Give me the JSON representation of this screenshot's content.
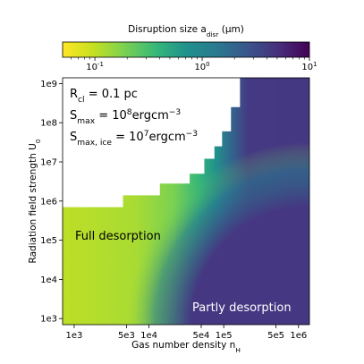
{
  "chart_data": {
    "type": "heatmap",
    "title": "",
    "xlabel": "Gas number density n_H",
    "ylabel": "Radiation field strength U_0",
    "x_scale": "log",
    "y_scale": "log",
    "xlim": [
      700,
      1400000
    ],
    "ylim": [
      700,
      1400000000
    ],
    "x_ticks": [
      {
        "value": 1000,
        "label": "1e3"
      },
      {
        "value": 5000,
        "label": "5e3"
      },
      {
        "value": 10000,
        "label": "1e4"
      },
      {
        "value": 50000,
        "label": "5e4"
      },
      {
        "value": 100000,
        "label": "1e5"
      },
      {
        "value": 500000,
        "label": "5e5"
      },
      {
        "value": 1000000,
        "label": "1e6"
      }
    ],
    "y_ticks": [
      {
        "value": 1000,
        "label": "1e3"
      },
      {
        "value": 10000,
        "label": "1e4"
      },
      {
        "value": 100000,
        "label": "1e5"
      },
      {
        "value": 1000000,
        "label": "1e6"
      },
      {
        "value": 10000000,
        "label": "1e7"
      },
      {
        "value": 100000000,
        "label": "1e8"
      },
      {
        "value": 1000000000,
        "label": "1e9"
      }
    ],
    "colorbar": {
      "label": "Disruption size a_disr (μm)",
      "scale": "log",
      "range": [
        0.05,
        10
      ],
      "colormap": "viridis_r",
      "ticks": [
        {
          "value": 0.1,
          "label": "10^-1"
        },
        {
          "value": 1,
          "label": "10^0"
        },
        {
          "value": 10,
          "label": "10^1"
        }
      ],
      "location": "top"
    },
    "full_desorption_boundary": [
      {
        "n_H": 700,
        "U0_min": 700000
      },
      {
        "n_H": 4500,
        "U0_min": 700000
      },
      {
        "n_H": 4500,
        "U0_min": 1400000
      },
      {
        "n_H": 14000,
        "U0_min": 1400000
      },
      {
        "n_H": 14000,
        "U0_min": 2800000
      },
      {
        "n_H": 35000,
        "U0_min": 2800000
      },
      {
        "n_H": 35000,
        "U0_min": 5000000
      },
      {
        "n_H": 55000,
        "U0_min": 5000000
      },
      {
        "n_H": 55000,
        "U0_min": 12000000
      },
      {
        "n_H": 75000,
        "U0_min": 12000000
      },
      {
        "n_H": 75000,
        "U0_min": 25000000
      },
      {
        "n_H": 95000,
        "U0_min": 25000000
      },
      {
        "n_H": 95000,
        "U0_min": 60000000
      },
      {
        "n_H": 125000,
        "U0_min": 60000000
      },
      {
        "n_H": 125000,
        "U0_min": 250000000
      },
      {
        "n_H": 165000,
        "U0_min": 250000000
      },
      {
        "n_H": 165000,
        "U0_min": 1400000000
      }
    ],
    "regions": [
      {
        "name": "Full desorption",
        "a_disr_um": 0.08
      },
      {
        "name": "Partly desorption",
        "a_disr_um": 10
      }
    ],
    "annotations": {
      "r_cl": {
        "symbol": "R",
        "sub": "cl",
        "text": " = 0.1 pc"
      },
      "s_max": {
        "symbol": "S",
        "sub": "max",
        "text": " = 10",
        "sup": "8",
        "unit": "ergcm",
        "unit_sup": "−3"
      },
      "s_max_ice": {
        "symbol": "S",
        "sub": "max, ice",
        "text": " = 10",
        "sup": "7",
        "unit": "ergcm",
        "unit_sup": "−3"
      },
      "full_desorption": "Full desorption",
      "partly_desorption": "Partly desorption"
    },
    "colors": {
      "full_desorption": "#b8de29",
      "partly_desorption": "#453781",
      "white_region": "#ffffff"
    }
  }
}
